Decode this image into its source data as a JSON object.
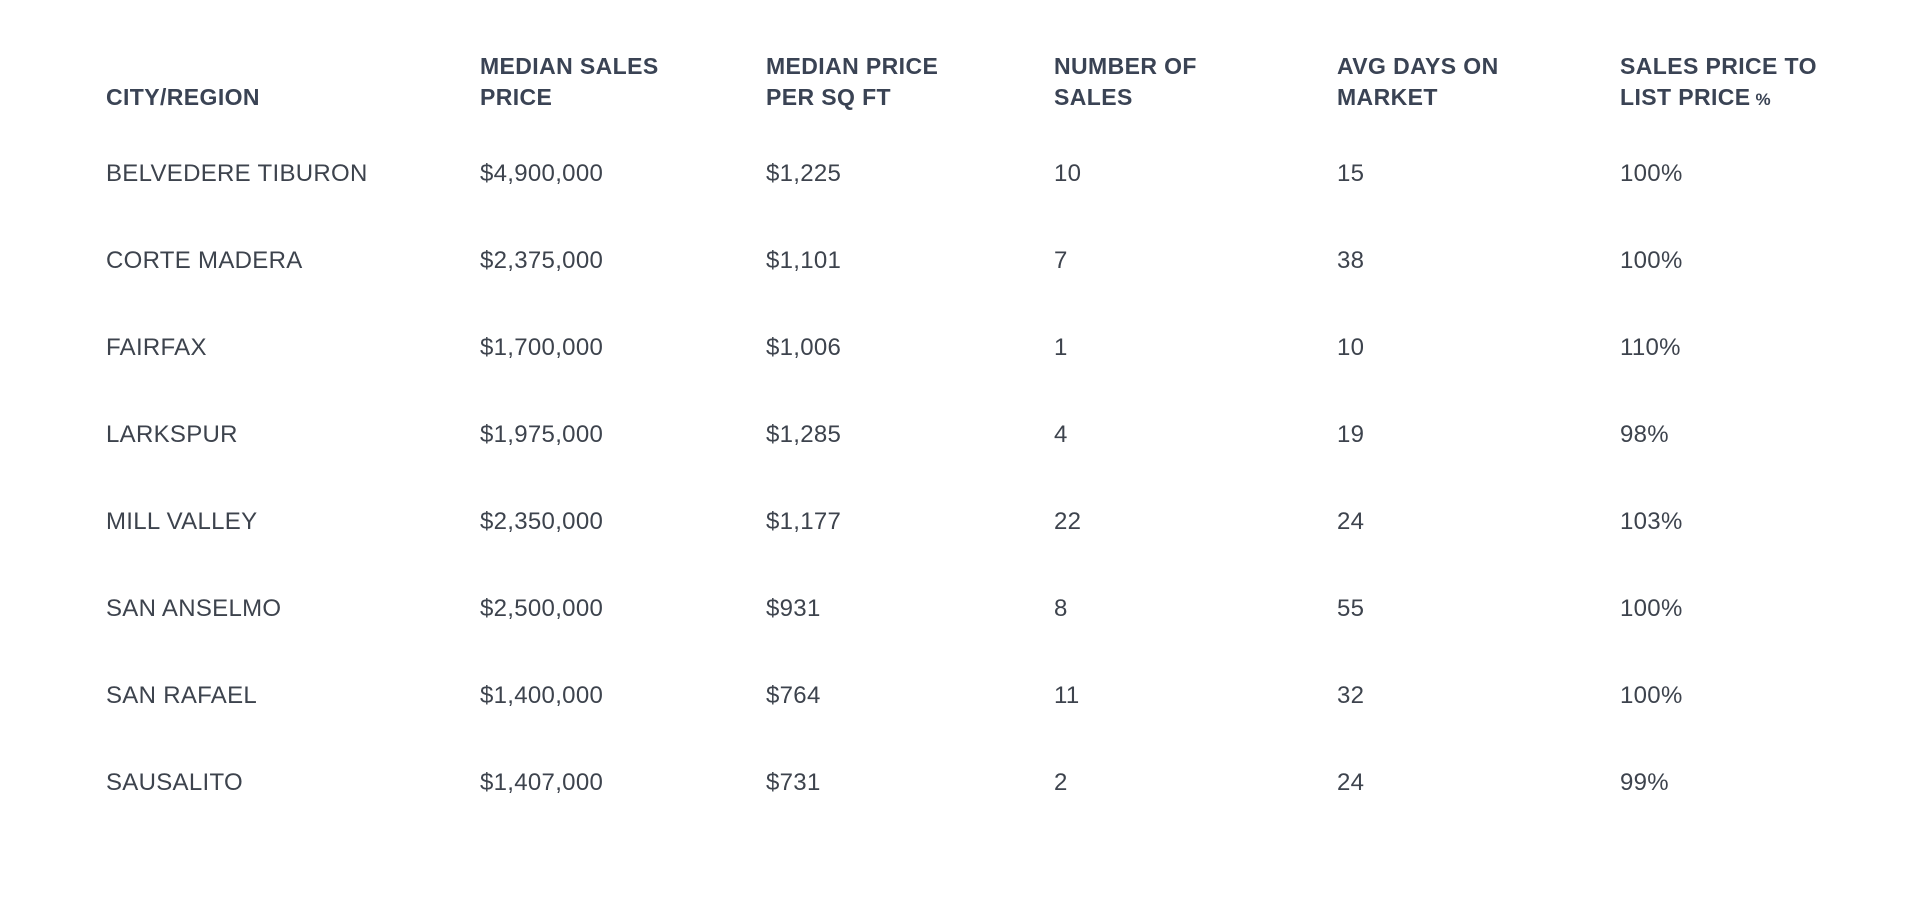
{
  "chart_data": {
    "type": "table",
    "title": "",
    "columns": [
      {
        "key": "city",
        "lines": [
          "CITY/REGION"
        ]
      },
      {
        "key": "median_sales_price",
        "lines": [
          "MEDIAN SALES",
          "PRICE"
        ]
      },
      {
        "key": "median_price_per_sqft",
        "lines": [
          "MEDIAN PRICE",
          "PER SQ FT"
        ]
      },
      {
        "key": "number_of_sales",
        "lines": [
          "NUMBER OF",
          "SALES"
        ]
      },
      {
        "key": "avg_days_on_market",
        "lines": [
          "AVG DAYS ON",
          "MARKET"
        ]
      },
      {
        "key": "sales_price_to_list",
        "lines": [
          "SALES PRICE TO",
          "LIST PRICE"
        ],
        "suffix": "%"
      }
    ],
    "rows": [
      [
        "BELVEDERE TIBURON",
        "$4,900,000",
        "$1,225",
        "10",
        "15",
        "100%"
      ],
      [
        "CORTE MADERA",
        "$2,375,000",
        "$1,101",
        "7",
        "38",
        "100%"
      ],
      [
        "FAIRFAX",
        "$1,700,000",
        "$1,006",
        "1",
        "10",
        "110%"
      ],
      [
        "LARKSPUR",
        "$1,975,000",
        "$1,285",
        "4",
        "19",
        "98%"
      ],
      [
        "MILL VALLEY",
        "$2,350,000",
        "$1,177",
        "22",
        "24",
        "103%"
      ],
      [
        "SAN ANSELMO",
        "$2,500,000",
        "$931",
        "8",
        "55",
        "100%"
      ],
      [
        "SAN RAFAEL",
        "$1,400,000",
        "$764",
        "11",
        "32",
        "100%"
      ],
      [
        "SAUSALITO",
        "$1,407,000",
        "$731",
        "2",
        "24",
        "99%"
      ]
    ]
  },
  "colors": {
    "header_text": "#3a4354",
    "body_text": "#3d434d",
    "background": "#ffffff"
  }
}
